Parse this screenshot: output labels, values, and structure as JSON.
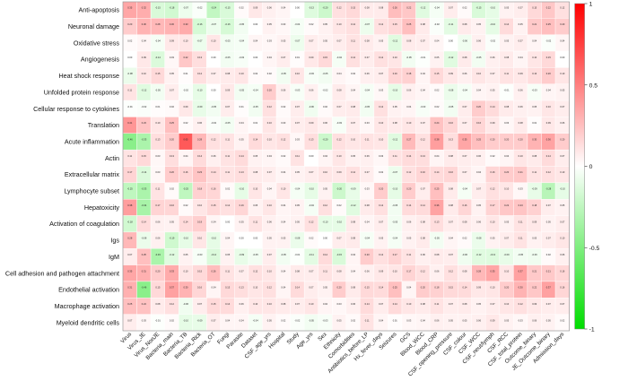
{
  "chart_data": {
    "type": "heatmap",
    "title": "",
    "xlabel": "",
    "ylabel": "",
    "rows": [
      "Anti-apoptosis",
      "Neuronal damage",
      "Oxidative stress",
      "Angiogenesis",
      "Heat shock response",
      "Unfolded protein response",
      "Cellular response to cytokines",
      "Translation",
      "Acute inflammation",
      "Actin",
      "Extracellular matrix",
      "Lymphocyte subset",
      "Hepatoxicity",
      "Activation of coagulation",
      "Igs",
      "IgM",
      "Cell adhesion and pathogen attachment",
      "Endothelial activation",
      "Macrophage activation",
      "Myeloid dendritic cells"
    ],
    "columns": [
      "Virus",
      "Virus_JE",
      "Virus_NonJE",
      "Bacteria_main",
      "Bacteria_TB",
      "Bacteria_Rick",
      "Bacteria_OT",
      "Fungi",
      "Parasite",
      "Dataset",
      "CSF_age_yrs",
      "Hospital",
      "Study",
      "Age_yrs",
      "Sex",
      "Ethnicity",
      "Comorbidities",
      "Antibiotics_before_LP",
      "Hx_fever_days",
      "Seizures",
      "GCS",
      "Blood_WCC",
      "Blood_CRP",
      "CSF_opening_pressure",
      "CSF_colour",
      "CSF_WCC",
      "CSF_neut/lymph",
      "CSF_RCC",
      "CSF_total_protein",
      "Outcome_binary",
      "JE_Outcome_binary",
      "Admission_days"
    ],
    "values": [
      [
        0.35,
        0.32,
        -0.15,
        -0.18,
        -0.07,
        -0.02,
        -0.24,
        -0.15,
        0.02,
        0.09,
        0.06,
        0.04,
        0.0,
        -0.13,
        -0.2,
        0.12,
        0.15,
        0.08,
        0.08,
        0.26,
        0.22,
        -0.12,
        -0.04,
        0.07,
        0.02,
        -0.15,
        -0.1,
        0.05,
        0.07,
        0.15,
        0.22,
        0.12
      ],
      [
        0.2,
        0.3,
        0.28,
        0.3,
        0.33,
        -0.16,
        -0.07,
        -0.16,
        -0.05,
        0.0,
        0.05,
        0.03,
        -0.04,
        0.02,
        0.05,
        0.1,
        0.12,
        -0.07,
        0.12,
        0.15,
        0.25,
        0.08,
        -0.02,
        -0.11,
        0.08,
        0.05,
        -0.1,
        0.14,
        0.05,
        0.21,
        0.25,
        0.2
      ],
      [
        0.02,
        0.04,
        -0.04,
        0.09,
        0.1,
        -0.07,
        0.1,
        -0.05,
        -0.04,
        0.04,
        0.03,
        0.05,
        -0.07,
        0.07,
        0.05,
        0.07,
        0.11,
        0.08,
        0.05,
        -0.12,
        0.08,
        0.07,
        0.04,
        0.0,
        -0.06,
        0.06,
        -0.02,
        0.05,
        0.07,
        0.04,
        -0.02,
        0.04
      ],
      [
        0.0,
        0.09,
        -0.14,
        0.03,
        0.22,
        0.13,
        0.0,
        -0.05,
        -0.03,
        0.0,
        0.04,
        0.07,
        0.01,
        0.09,
        0.15,
        -0.04,
        0.12,
        0.07,
        0.12,
        0.1,
        -0.05,
        -0.01,
        0.05,
        -0.12,
        0.08,
        -0.05,
        0.06,
        0.08,
        0.04,
        0.1,
        0.15,
        0.0
      ],
      [
        -0.08,
        0.1,
        0.15,
        0.05,
        0.01,
        0.12,
        0.07,
        0.08,
        0.1,
        0.02,
        0.02,
        -0.05,
        0.1,
        -0.03,
        -0.05,
        0.04,
        0.02,
        0.06,
        0.07,
        0.16,
        0.18,
        0.04,
        0.15,
        0.09,
        0.06,
        0.1,
        0.07,
        0.11,
        0.09,
        0.13,
        0.2,
        0.1
      ],
      [
        0.11,
        -0.12,
        -0.05,
        0.07,
        -0.02,
        -0.1,
        0.0,
        0.09,
        -0.05,
        -0.04,
        0.2,
        0.06,
        -0.03,
        0.06,
        -0.02,
        0.08,
        0.04,
        -0.04,
        0.03,
        -0.1,
        0.06,
        0.04,
        0.02,
        -0.08,
        -0.04,
        0.04,
        0.05,
        -0.01,
        0.06,
        -0.03,
        0.04,
        0.05
      ],
      [
        -0.01,
        -0.02,
        0.01,
        0.02,
        0.09,
        -0.09,
        -0.05,
        0.07,
        0.01,
        -0.05,
        0.12,
        0.02,
        0.07,
        -0.06,
        0.02,
        0.07,
        0.08,
        -0.05,
        0.12,
        0.05,
        0.04,
        -0.03,
        0.02,
        -0.05,
        0.07,
        0.2,
        0.14,
        0.08,
        0.06,
        0.05,
        0.1,
        0.07
      ],
      [
        0.41,
        0.23,
        0.1,
        0.25,
        0.02,
        0.06,
        -0.02,
        -0.05,
        0.04,
        0.01,
        0.1,
        0.03,
        0.07,
        0.09,
        0.06,
        -0.03,
        0.07,
        0.03,
        0.1,
        0.08,
        0.1,
        0.07,
        0.24,
        0.16,
        0.07,
        0.16,
        0.09,
        0.03,
        0.08,
        0.01,
        0.09,
        0.06
      ],
      [
        -0.46,
        -0.33,
        0.13,
        0.2,
        0.65,
        0.28,
        0.12,
        0.11,
        0.05,
        0.14,
        0.1,
        0.12,
        0.03,
        0.13,
        -0.2,
        0.12,
        0.1,
        0.11,
        0.1,
        -0.12,
        0.27,
        0.12,
        0.38,
        0.13,
        0.35,
        0.25,
        0.2,
        0.2,
        0.2,
        0.3,
        0.36,
        0.2
      ],
      [
        0.11,
        0.15,
        0.03,
        0.13,
        0.04,
        0.14,
        0.06,
        0.11,
        0.14,
        0.05,
        0.04,
        0.02,
        0.11,
        0.0,
        0.04,
        0.1,
        0.05,
        0.06,
        0.03,
        0.11,
        0.14,
        0.13,
        0.04,
        0.08,
        0.07,
        0.06,
        0.02,
        0.04,
        0.1,
        0.08,
        0.14,
        0.07
      ],
      [
        0.17,
        -0.14,
        0.03,
        0.2,
        0.16,
        0.23,
        0.14,
        0.11,
        0.13,
        0.08,
        0.07,
        0.04,
        0.05,
        0.07,
        0.1,
        0.09,
        0.12,
        0.07,
        0.02,
        -0.07,
        0.12,
        0.16,
        0.14,
        0.16,
        0.07,
        0.04,
        0.16,
        0.2,
        0.21,
        0.11,
        0.12,
        0.1
      ],
      [
        -0.25,
        -0.33,
        0.11,
        0.02,
        -0.25,
        0.18,
        0.16,
        0.02,
        -0.1,
        0.1,
        0.04,
        0.1,
        -0.04,
        -0.1,
        0.05,
        -0.2,
        -0.09,
        0.03,
        0.2,
        -0.1,
        0.2,
        0.07,
        0.25,
        0.08,
        -0.04,
        0.07,
        0.12,
        0.1,
        0.03,
        -0.09,
        -0.28,
        -0.1
      ],
      [
        0.38,
        -0.34,
        0.17,
        0.16,
        0.02,
        0.1,
        0.15,
        0.12,
        0.16,
        0.05,
        0.1,
        0.04,
        0.05,
        -0.04,
        0.12,
        0.02,
        -0.12,
        0.08,
        0.12,
        -0.05,
        0.14,
        0.14,
        0.36,
        0.08,
        0.16,
        0.05,
        0.17,
        0.22,
        0.23,
        0.18,
        0.07,
        0.05
      ],
      [
        -0.18,
        0.14,
        0.06,
        0.05,
        0.14,
        0.19,
        0.04,
        0.0,
        0.05,
        0.11,
        0.06,
        0.04,
        0.05,
        0.12,
        -0.1,
        -0.1,
        0.08,
        0.04,
        0.07,
        -0.05,
        0.06,
        0.08,
        0.13,
        0.07,
        0.08,
        0.06,
        0.1,
        0.05,
        0.11,
        0.09,
        0.05,
        0.07
      ],
      [
        0.28,
        -0.08,
        0.06,
        -0.19,
        -0.1,
        0.1,
        -0.1,
        0.04,
        0.0,
        0.0,
        0.05,
        0.05,
        -0.08,
        0.02,
        0.0,
        0.07,
        0.08,
        -0.04,
        0.05,
        -0.04,
        0.05,
        0.08,
        -0.05,
        0.04,
        0.02,
        -0.08,
        0.05,
        0.07,
        0.11,
        0.05,
        0.07,
        0.1
      ],
      [
        0.07,
        0.25,
        -0.33,
        -0.12,
        0.05,
        -0.03,
        -0.14,
        0.05,
        -0.09,
        -0.05,
        0.07,
        -0.05,
        -0.01,
        -0.11,
        0.14,
        -0.15,
        0.04,
        0.2,
        0.12,
        0.17,
        0.11,
        0.06,
        0.08,
        0.07,
        -0.06,
        -0.12,
        -0.13,
        -0.09,
        -0.05,
        -0.06,
        0.02,
        0.06
      ],
      [
        0.35,
        0.31,
        0.2,
        0.33,
        0.1,
        0.15,
        0.26,
        0.11,
        0.07,
        0.12,
        0.1,
        0.04,
        0.08,
        0.07,
        0.11,
        0.08,
        0.04,
        0.06,
        0.09,
        0.1,
        0.17,
        0.12,
        0.06,
        0.12,
        0.08,
        0.28,
        0.35,
        0.1,
        0.37,
        0.21,
        0.21,
        0.16
      ],
      [
        0.31,
        -0.46,
        0.15,
        0.37,
        0.3,
        0.16,
        0.04,
        0.15,
        0.13,
        0.1,
        0.12,
        0.04,
        0.14,
        0.07,
        0.05,
        0.2,
        0.08,
        0.15,
        0.14,
        0.25,
        0.04,
        0.2,
        0.18,
        0.15,
        0.14,
        0.09,
        0.1,
        0.2,
        0.3,
        0.22,
        0.37,
        0.16
      ],
      [
        0.25,
        0.24,
        0.08,
        0.12,
        -0.06,
        0.07,
        0.15,
        0.14,
        0.06,
        0.1,
        0.1,
        0.08,
        0.07,
        0.1,
        0.04,
        0.03,
        0.06,
        0.14,
        0.07,
        0.14,
        0.1,
        0.08,
        0.11,
        0.07,
        0.08,
        0.05,
        0.07,
        0.1,
        0.12,
        0.09,
        0.07,
        0.07
      ],
      [
        0.07,
        0.03,
        -0.01,
        0.02,
        -0.1,
        -0.09,
        0.07,
        0.04,
        0.04,
        -0.04,
        0.05,
        0.02,
        -0.02,
        -0.05,
        -0.03,
        0.05,
        0.02,
        0.11,
        0.04,
        0.01,
        0.03,
        0.04,
        0.06,
        0.05,
        0.05,
        0.06,
        0.09,
        0.05,
        0.03,
        0.06,
        0.05,
        0.02
      ]
    ],
    "colorscale": {
      "min": -1,
      "max": 1,
      "low_color": "#00dd00",
      "mid_color": "#ffffff",
      "high_color": "#ff0000"
    },
    "colorbar": {
      "ticks": [
        1,
        0.5,
        0,
        -0.5,
        -1
      ],
      "tick_labels": [
        "1",
        "0.5",
        "0",
        "-0.5",
        "-1"
      ],
      "placement": "right"
    }
  }
}
